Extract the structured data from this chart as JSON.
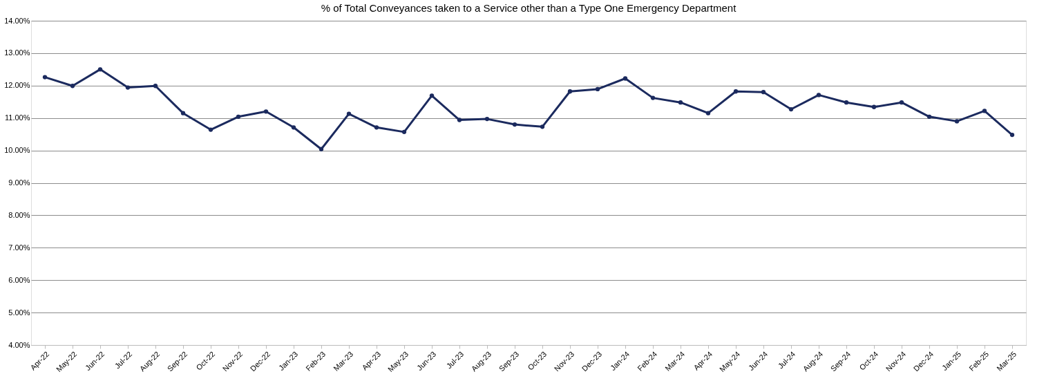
{
  "chart_data": {
    "type": "line",
    "title": "% of Total Conveyances taken to a Service other than a Type One Emergency Department",
    "categories": [
      "Apr-22",
      "May-22",
      "Jun-22",
      "Jul-22",
      "Aug-22",
      "Sep-22",
      "Oct-22",
      "Nov-22",
      "Dec-22",
      "Jan-23",
      "Feb-23",
      "Mar-23",
      "Apr-23",
      "May-23",
      "Jun-23",
      "Jul-23",
      "Aug-23",
      "Sep-23",
      "Oct-23",
      "Nov-23",
      "Dec-23",
      "Jan-24",
      "Feb-24",
      "Mar-24",
      "Apr-24",
      "May-24",
      "Jun-24",
      "Jul-24",
      "Aug-24",
      "Sep-24",
      "Oct-24",
      "Nov-24",
      "Dec-24",
      "Jan-25",
      "Feb-25",
      "Mar-25"
    ],
    "series": [
      {
        "color": "#1b2a5e",
        "values": [
          12.26,
          11.99,
          12.5,
          11.94,
          11.99,
          11.15,
          10.64,
          11.04,
          11.2,
          10.71,
          10.04,
          11.13,
          10.71,
          10.57,
          11.69,
          10.94,
          10.97,
          10.8,
          10.73,
          11.82,
          11.89,
          12.22,
          11.62,
          11.48,
          11.15,
          11.82,
          11.8,
          11.27,
          11.71,
          11.48,
          11.34,
          11.48,
          11.04,
          10.9,
          11.22,
          10.48
        ]
      }
    ],
    "ylim": [
      4,
      14
    ],
    "yticks": [
      {
        "value": 4,
        "label": "4.00%"
      },
      {
        "value": 5,
        "label": "5.00%"
      },
      {
        "value": 6,
        "label": "6.00%"
      },
      {
        "value": 7,
        "label": "7.00%"
      },
      {
        "value": 8,
        "label": "8.00%"
      },
      {
        "value": 9,
        "label": "9.00%"
      },
      {
        "value": 10,
        "label": "10.00%"
      },
      {
        "value": 11,
        "label": "11.00%"
      },
      {
        "value": 12,
        "label": "12.00%"
      },
      {
        "value": 13,
        "label": "13.00%"
      },
      {
        "value": 14,
        "label": "14.00%"
      }
    ],
    "grid": "y",
    "marker": "circle",
    "line_style": "solid"
  }
}
